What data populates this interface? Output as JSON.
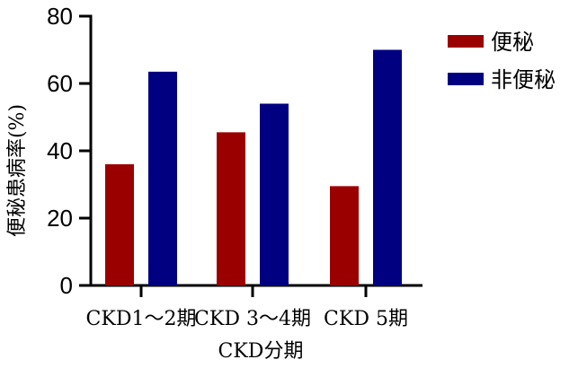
{
  "chart_data": {
    "type": "bar",
    "categories": [
      "CKD1～2期",
      "CKD 3～4期",
      "CKD 5期"
    ],
    "series": [
      {
        "name": "便秘",
        "values": [
          36,
          45.5,
          29.5
        ],
        "color": "#9b0000"
      },
      {
        "name": "非便秘",
        "values": [
          63.5,
          54,
          70
        ],
        "color": "#000080"
      }
    ],
    "xlabel": "CKD分期",
    "ylabel": "便秘患病率(%)",
    "ylim": [
      0,
      80
    ],
    "yticks": [
      "0",
      "20",
      "40",
      "60",
      "80"
    ],
    "grid": false,
    "legend_position": "top-right"
  }
}
